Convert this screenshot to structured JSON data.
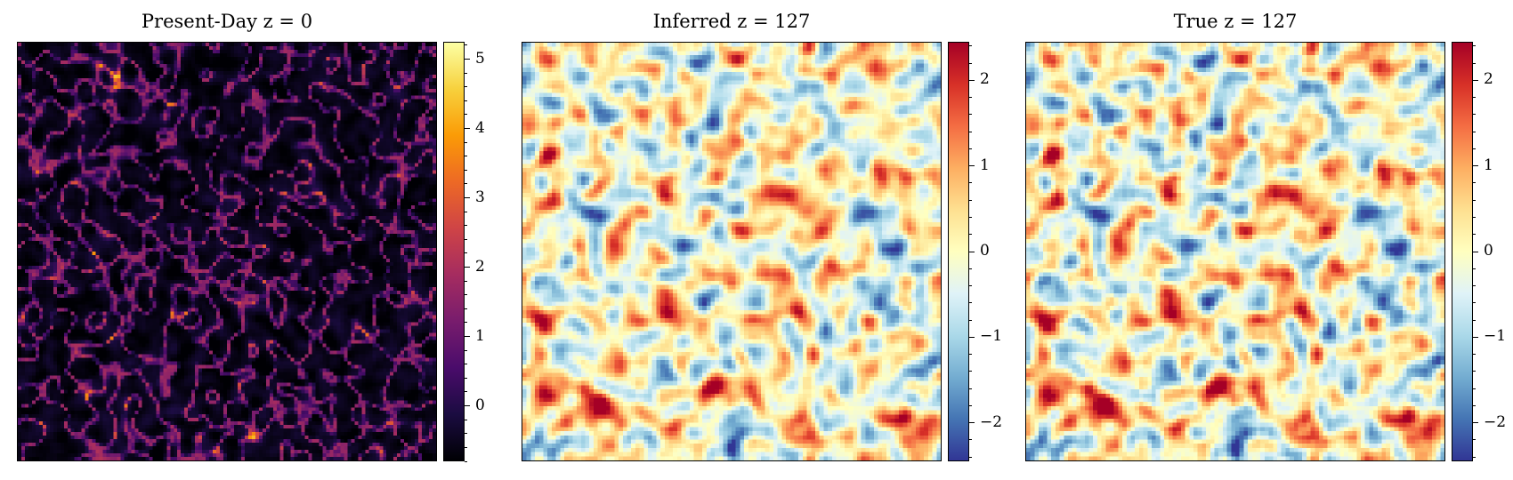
{
  "chart_data": [
    {
      "type": "heatmap",
      "title": "Present-Day z = 0",
      "colormap": "inferno",
      "colorbar": {
        "range": [
          -0.8,
          5.25
        ],
        "ticks": [
          0,
          1,
          2,
          3,
          4,
          5
        ],
        "tick_labels": [
          "0",
          "1",
          "2",
          "3",
          "4",
          "5"
        ]
      },
      "grid": false,
      "axes_ticks_visible": false
    },
    {
      "type": "heatmap",
      "title": "Inferred z = 127",
      "colormap": "RdYlBu_r",
      "colorbar": {
        "range": [
          -2.45,
          2.45
        ],
        "ticks": [
          -2,
          -1,
          0,
          1,
          2
        ],
        "tick_labels": [
          "−2",
          "−1",
          "0",
          "1",
          "2"
        ]
      },
      "grid": false,
      "axes_ticks_visible": false
    },
    {
      "type": "heatmap",
      "title": "True z = 127",
      "colormap": "RdYlBu_r",
      "colorbar": {
        "range": [
          -2.45,
          2.45
        ],
        "ticks": [
          -2,
          -1,
          0,
          1,
          2
        ],
        "tick_labels": [
          "−2",
          "−1",
          "0",
          "1",
          "2"
        ]
      },
      "grid": false,
      "axes_ticks_visible": false
    }
  ]
}
